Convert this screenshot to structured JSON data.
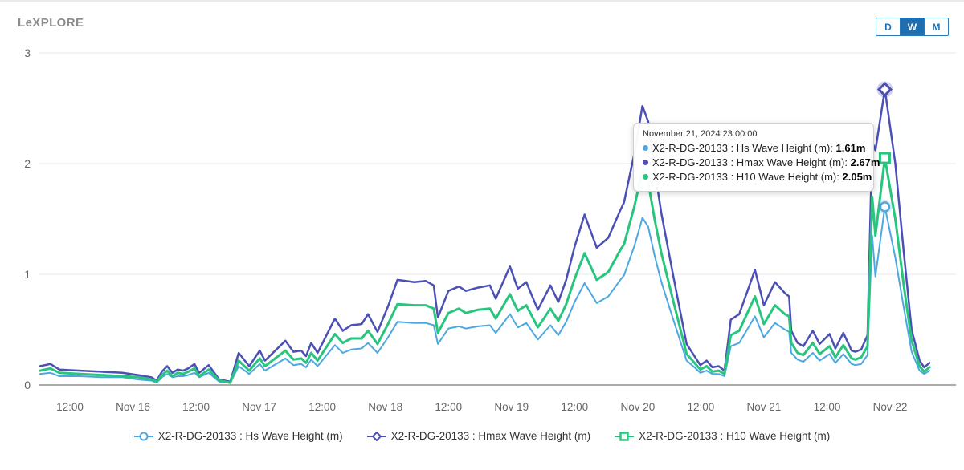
{
  "header": {
    "title": "LeXPLORE",
    "range_buttons": [
      {
        "label": "D",
        "selected": false
      },
      {
        "label": "W",
        "selected": true
      },
      {
        "label": "M",
        "selected": false
      }
    ]
  },
  "colors": {
    "accent_blue": "#1f6fb0",
    "grid_line": "#e8e8e8",
    "baseline": "#ababab",
    "axis_text": "#666666",
    "title_gray": "#8c8c8c"
  },
  "tooltip": {
    "title": "November 21, 2024 23:00:00",
    "rows": [
      {
        "label": "X2-R-DG-20133 : Hs Wave Height (m):",
        "value": "1.61m",
        "color": "#4da7e0"
      },
      {
        "label": "X2-R-DG-20133 : Hmax Wave Height (m):",
        "value": "2.67m",
        "color": "#4c50b5"
      },
      {
        "label": "X2-R-DG-20133 : H10 Wave Height (m):",
        "value": "2.05m",
        "color": "#29c57e"
      }
    ]
  },
  "chart_data": {
    "type": "line",
    "title": "LeXPLORE",
    "xlabel": "",
    "ylabel": "Wave Height (m)",
    "grid": "horizontal-only",
    "legend_position": "bottom-center",
    "x_axis": {
      "unit": "hours since Nov 15, 2024 00:00",
      "range_hours": [
        6,
        176
      ],
      "tick_hours": [
        12,
        24,
        36,
        48,
        60,
        72,
        84,
        96,
        108,
        120,
        132,
        144,
        156,
        168
      ],
      "tick_labels": [
        "12:00",
        "Nov 16",
        "12:00",
        "Nov 17",
        "12:00",
        "Nov 18",
        "12:00",
        "Nov 19",
        "12:00",
        "Nov 20",
        "12:00",
        "Nov 21",
        "12:00",
        "Nov 22"
      ]
    },
    "y_axis": {
      "min": 0,
      "max": 3,
      "ticks": [
        0,
        1,
        2,
        3
      ]
    },
    "x_hours": [
      6.3,
      8.3,
      10,
      14,
      18,
      22,
      25,
      27.5,
      28.5,
      29.5,
      30.5,
      31.5,
      32.5,
      33.5,
      34.5,
      35.7,
      36.6,
      38.4,
      40.4,
      42.5,
      44.1,
      46.1,
      48.1,
      49.1,
      53,
      54.5,
      56,
      56.9,
      57.9,
      59.1,
      62.4,
      63.9,
      65.5,
      67.5,
      68.7,
      70.5,
      72.5,
      74.3,
      77.5,
      79.7,
      81.2,
      82,
      84,
      86,
      87.3,
      89.6,
      91.9,
      93,
      95.7,
      97.2,
      98.8,
      101,
      103.4,
      104.9,
      106.4,
      108,
      109.9,
      112.2,
      114.4,
      116.7,
      117.4,
      119.4,
      120.9,
      122,
      123.2,
      124.5,
      126.7,
      129.3,
      130.8,
      131.9,
      133.1,
      134.2,
      135.4,
      136.5,
      137.7,
      139.3,
      142.3,
      144,
      146.1,
      148,
      148.8,
      149.2,
      150.4,
      151.5,
      153.3,
      154.6,
      156.5,
      157.6,
      159.1,
      160.7,
      161.4,
      162.5,
      163.7,
      164.6,
      165.2,
      167,
      169,
      170.6,
      172.1,
      173.6,
      174.5,
      175.5
    ],
    "series": [
      {
        "name": "X2-R-DG-20133 : Hs Wave Height (m)",
        "color": "#4da7e0",
        "marker": "circle",
        "line_width": 2,
        "values": [
          0.1,
          0.11,
          0.08,
          0.08,
          0.07,
          0.07,
          0.05,
          0.04,
          0.02,
          0.07,
          0.1,
          0.07,
          0.08,
          0.08,
          0.09,
          0.11,
          0.07,
          0.11,
          0.03,
          0.02,
          0.17,
          0.1,
          0.19,
          0.13,
          0.24,
          0.18,
          0.19,
          0.16,
          0.23,
          0.17,
          0.36,
          0.29,
          0.32,
          0.33,
          0.38,
          0.29,
          0.43,
          0.57,
          0.56,
          0.56,
          0.54,
          0.37,
          0.51,
          0.53,
          0.51,
          0.53,
          0.54,
          0.47,
          0.64,
          0.52,
          0.56,
          0.41,
          0.54,
          0.45,
          0.57,
          0.75,
          0.92,
          0.74,
          0.8,
          0.95,
          0.99,
          1.26,
          1.51,
          1.43,
          1.17,
          0.93,
          0.6,
          0.22,
          0.16,
          0.11,
          0.13,
          0.1,
          0.1,
          0.08,
          0.35,
          0.38,
          0.62,
          0.43,
          0.56,
          0.5,
          0.48,
          0.29,
          0.23,
          0.21,
          0.29,
          0.22,
          0.28,
          0.2,
          0.28,
          0.19,
          0.18,
          0.19,
          0.27,
          1.35,
          0.98,
          1.61,
          1.15,
          0.7,
          0.3,
          0.13,
          0.1,
          0.13
        ]
      },
      {
        "name": "X2-R-DG-20133 : Hmax Wave Height (m)",
        "color": "#4c50b5",
        "marker": "diamond",
        "line_width": 2.5,
        "values": [
          0.17,
          0.19,
          0.14,
          0.13,
          0.12,
          0.11,
          0.09,
          0.07,
          0.04,
          0.12,
          0.17,
          0.11,
          0.14,
          0.13,
          0.15,
          0.19,
          0.11,
          0.18,
          0.05,
          0.03,
          0.29,
          0.17,
          0.31,
          0.22,
          0.4,
          0.3,
          0.31,
          0.26,
          0.38,
          0.29,
          0.6,
          0.49,
          0.54,
          0.55,
          0.64,
          0.48,
          0.71,
          0.95,
          0.93,
          0.94,
          0.9,
          0.61,
          0.85,
          0.89,
          0.85,
          0.88,
          0.9,
          0.78,
          1.07,
          0.87,
          0.93,
          0.68,
          0.9,
          0.75,
          0.95,
          1.25,
          1.54,
          1.24,
          1.33,
          1.58,
          1.65,
          2.1,
          2.52,
          2.38,
          1.95,
          1.55,
          1.0,
          0.37,
          0.26,
          0.18,
          0.22,
          0.16,
          0.17,
          0.13,
          0.59,
          0.64,
          1.04,
          0.72,
          0.93,
          0.83,
          0.8,
          0.49,
          0.38,
          0.35,
          0.49,
          0.37,
          0.46,
          0.33,
          0.47,
          0.31,
          0.3,
          0.32,
          0.45,
          2.2,
          2.12,
          2.67,
          2.0,
          1.2,
          0.5,
          0.22,
          0.16,
          0.2
        ]
      },
      {
        "name": "X2-R-DG-20133 : H10 Wave Height (m)",
        "color": "#29c57e",
        "marker": "square",
        "line_width": 3,
        "values": [
          0.13,
          0.15,
          0.11,
          0.1,
          0.09,
          0.08,
          0.07,
          0.05,
          0.03,
          0.09,
          0.13,
          0.08,
          0.11,
          0.1,
          0.12,
          0.15,
          0.08,
          0.14,
          0.04,
          0.02,
          0.22,
          0.13,
          0.24,
          0.17,
          0.31,
          0.23,
          0.24,
          0.2,
          0.29,
          0.22,
          0.46,
          0.38,
          0.42,
          0.42,
          0.49,
          0.37,
          0.55,
          0.73,
          0.72,
          0.72,
          0.69,
          0.47,
          0.65,
          0.69,
          0.65,
          0.68,
          0.69,
          0.6,
          0.82,
          0.67,
          0.72,
          0.52,
          0.69,
          0.58,
          0.73,
          0.96,
          1.19,
          0.95,
          1.02,
          1.22,
          1.27,
          1.62,
          1.94,
          1.83,
          1.5,
          1.19,
          0.77,
          0.28,
          0.2,
          0.14,
          0.17,
          0.12,
          0.13,
          0.1,
          0.45,
          0.49,
          0.8,
          0.55,
          0.72,
          0.64,
          0.62,
          0.38,
          0.29,
          0.27,
          0.38,
          0.28,
          0.35,
          0.25,
          0.36,
          0.24,
          0.23,
          0.25,
          0.35,
          1.7,
          1.35,
          2.05,
          1.5,
          0.9,
          0.4,
          0.17,
          0.12,
          0.16
        ]
      }
    ],
    "highlight": {
      "hour": 167,
      "timestamp": "November 21, 2024 23:00:00",
      "values": {
        "hs": 1.61,
        "hmax": 2.67,
        "h10": 2.05
      }
    }
  }
}
